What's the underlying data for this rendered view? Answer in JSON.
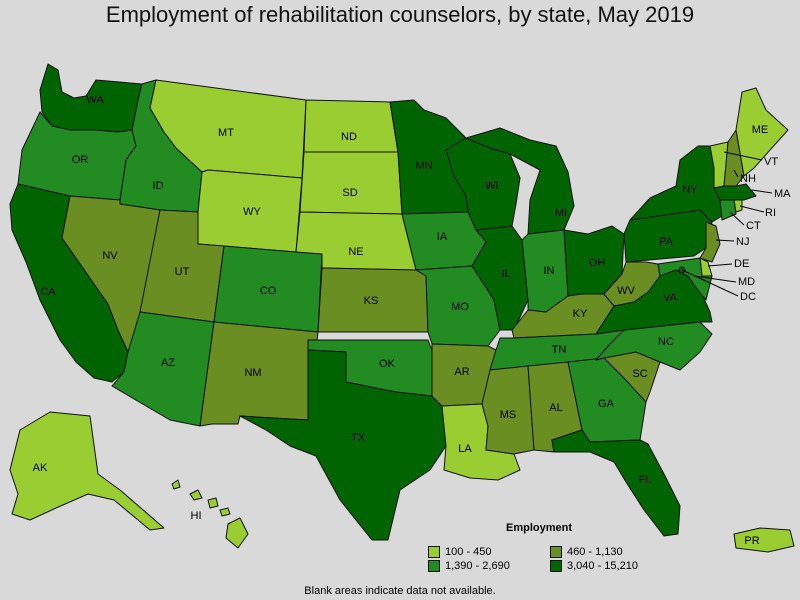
{
  "title": "Employment of rehabilitation counselors, by state, May 2019",
  "legend": {
    "title": "Employment",
    "bins": [
      {
        "label": "100 - 450",
        "color": "#9acd32"
      },
      {
        "label": "460 - 1,130",
        "color": "#6b8e23"
      },
      {
        "label": "1,390 - 2,690",
        "color": "#228b22"
      },
      {
        "label": "3,040 - 15,210",
        "color": "#006400"
      }
    ]
  },
  "footnote": "Blank areas indicate data not available.",
  "states": [
    {
      "abbr": "WA",
      "bin": 3
    },
    {
      "abbr": "OR",
      "bin": 2
    },
    {
      "abbr": "CA",
      "bin": 3
    },
    {
      "abbr": "ID",
      "bin": 2
    },
    {
      "abbr": "NV",
      "bin": 1
    },
    {
      "abbr": "MT",
      "bin": 0
    },
    {
      "abbr": "WY",
      "bin": 0
    },
    {
      "abbr": "UT",
      "bin": 1
    },
    {
      "abbr": "AZ",
      "bin": 2
    },
    {
      "abbr": "CO",
      "bin": 2
    },
    {
      "abbr": "NM",
      "bin": 1
    },
    {
      "abbr": "ND",
      "bin": 0
    },
    {
      "abbr": "SD",
      "bin": 0
    },
    {
      "abbr": "NE",
      "bin": 0
    },
    {
      "abbr": "KS",
      "bin": 1
    },
    {
      "abbr": "OK",
      "bin": 2
    },
    {
      "abbr": "TX",
      "bin": 3
    },
    {
      "abbr": "MN",
      "bin": 3
    },
    {
      "abbr": "IA",
      "bin": 2
    },
    {
      "abbr": "MO",
      "bin": 2
    },
    {
      "abbr": "AR",
      "bin": 1
    },
    {
      "abbr": "LA",
      "bin": 0
    },
    {
      "abbr": "WI",
      "bin": 3
    },
    {
      "abbr": "IL",
      "bin": 3
    },
    {
      "abbr": "MI",
      "bin": 3
    },
    {
      "abbr": "IN",
      "bin": 2
    },
    {
      "abbr": "OH",
      "bin": 3
    },
    {
      "abbr": "KY",
      "bin": 1
    },
    {
      "abbr": "TN",
      "bin": 2
    },
    {
      "abbr": "MS",
      "bin": 1
    },
    {
      "abbr": "AL",
      "bin": 1
    },
    {
      "abbr": "GA",
      "bin": 2
    },
    {
      "abbr": "FL",
      "bin": 3
    },
    {
      "abbr": "SC",
      "bin": 1
    },
    {
      "abbr": "NC",
      "bin": 2
    },
    {
      "abbr": "VA",
      "bin": 3
    },
    {
      "abbr": "WV",
      "bin": 1
    },
    {
      "abbr": "PA",
      "bin": 3
    },
    {
      "abbr": "NY",
      "bin": 3
    },
    {
      "abbr": "ME",
      "bin": 0
    },
    {
      "abbr": "VT",
      "bin": 0
    },
    {
      "abbr": "NH",
      "bin": 1
    },
    {
      "abbr": "MA",
      "bin": 3
    },
    {
      "abbr": "RI",
      "bin": 0
    },
    {
      "abbr": "CT",
      "bin": 2
    },
    {
      "abbr": "NJ",
      "bin": 1
    },
    {
      "abbr": "DE",
      "bin": 0
    },
    {
      "abbr": "MD",
      "bin": 2
    },
    {
      "abbr": "DC",
      "bin": 3
    },
    {
      "abbr": "AK",
      "bin": 0
    },
    {
      "abbr": "HI",
      "bin": 0
    },
    {
      "abbr": "PR",
      "bin": 0
    }
  ]
}
